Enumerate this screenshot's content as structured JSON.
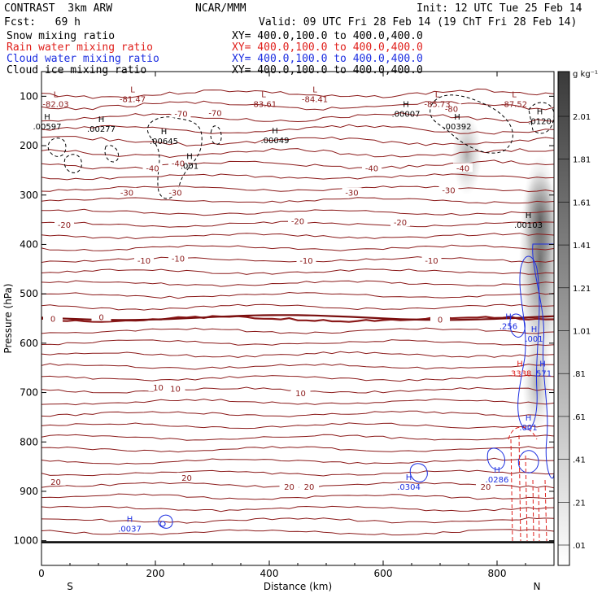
{
  "header": {
    "title": "CONTRAST  3km ARW",
    "org": "NCAR/MMM",
    "init": "Init: 12 UTC Tue 25 Feb 14",
    "fcst": "Fcst:   69 h",
    "valid": "Valid: 09 UTC Fri 28 Feb 14 (19 ChT Fri 28 Feb 14)",
    "fields": [
      {
        "label": "Snow mixing ratio",
        "xy": "XY= 400.0,100.0 to 400.0,400.0",
        "color": "#000000"
      },
      {
        "label": "Rain water mixing ratio",
        "xy": "XY= 400.0,100.0 to 400.0,400.0",
        "color": "#e0201c"
      },
      {
        "label": "Cloud water mixing ratio",
        "xy": "XY= 400.0,100.0 to 400.0,400.0",
        "color": "#1c2ee0"
      },
      {
        "label": "Cloud ice mixing ratio",
        "xy": "XY= 400.0,100.0 to 400.0,400.0",
        "color": "#000000"
      }
    ]
  },
  "chart_data": {
    "type": "contour-cross-section",
    "xlabel": "Distance (km)",
    "ylabel": "Pressure (hPa)",
    "xlim": [
      0,
      900
    ],
    "ylim": [
      1050,
      50
    ],
    "x_ticks": [
      0,
      200,
      400,
      600,
      800
    ],
    "y_ticks": [
      100,
      200,
      300,
      400,
      500,
      600,
      700,
      800,
      900,
      1000
    ],
    "x_end_labels": {
      "left": "S",
      "right": "N"
    },
    "colorbar": {
      "unit": "g kg⁻¹",
      "ticks": [
        "2.01",
        "1.81",
        "1.61",
        "1.41",
        "1.21",
        "1.01",
        ".81",
        ".61",
        ".41",
        ".21",
        ".01"
      ]
    },
    "temperature_contours_C": [
      -80,
      -70,
      -40,
      -30,
      -20,
      -10,
      0,
      10,
      20
    ],
    "extrema": [
      {
        "type": "L",
        "value": "-82.03",
        "x": 25,
        "p": 115
      },
      {
        "type": "L",
        "value": "-81.47",
        "x": 160,
        "p": 105
      },
      {
        "type": "L",
        "value": "-83.61",
        "x": 390,
        "p": 115
      },
      {
        "type": "L",
        "value": "-84.41",
        "x": 480,
        "p": 105
      },
      {
        "type": "L",
        "value": "-85.73",
        "x": 695,
        "p": 115
      },
      {
        "type": "L",
        "value": "-87.52",
        "x": 830,
        "p": 115
      },
      {
        "type": "H",
        "value": ".00597",
        "x": 10,
        "p": 160
      },
      {
        "type": "H",
        "value": ".00277",
        "x": 105,
        "p": 165
      },
      {
        "type": "H",
        "value": ".00645",
        "x": 215,
        "p": 190
      },
      {
        "type": "H",
        "value": ".00049",
        "x": 410,
        "p": 188
      },
      {
        "type": "H",
        "value": ".00007",
        "x": 640,
        "p": 135
      },
      {
        "type": "H",
        "value": ".00392",
        "x": 730,
        "p": 160
      },
      {
        "type": "H",
        "value": ".0120",
        "x": 875,
        "p": 150
      },
      {
        "type": "H",
        "value": ".001",
        "x": 260,
        "p": 240
      },
      {
        "type": "H",
        "value": ".00103",
        "x": 855,
        "p": 360
      },
      {
        "type": "H",
        "value": ".256",
        "x": 820,
        "p": 565
      },
      {
        "type": "H",
        "value": ".001",
        "x": 865,
        "p": 590
      },
      {
        "type": "H",
        "value": ".3338",
        "x": 840,
        "p": 660
      },
      {
        "type": "H",
        "value": ".571",
        "x": 880,
        "p": 660
      },
      {
        "type": "H",
        "value": ".001",
        "x": 855,
        "p": 770
      },
      {
        "type": "H",
        "value": ".0286",
        "x": 800,
        "p": 875
      },
      {
        "type": "H",
        "value": ".0304",
        "x": 645,
        "p": 890
      },
      {
        "type": "H",
        "value": ".0037",
        "x": 155,
        "p": 975
      }
    ]
  }
}
